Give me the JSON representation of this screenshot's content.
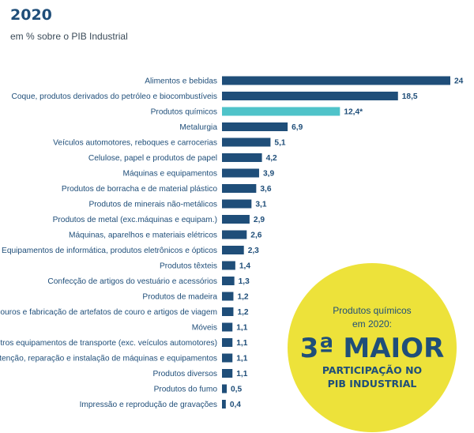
{
  "chart_data": {
    "type": "bar",
    "orientation": "horizontal",
    "title": "2020",
    "subtitle": "em % sobre o PIB Industrial",
    "categories": [
      "Alimentos e bebidas",
      "Coque, produtos derivados do petróleo e biocombustíveis",
      "Produtos químicos",
      "Metalurgia",
      "Veículos automotores, reboques e carrocerias",
      "Celulose, papel e produtos de papel",
      "Máquinas e equipamentos",
      "Produtos de borracha e de material plástico",
      "Produtos de minerais não-metálicos",
      "Produtos de metal (exc.máquinas e equipam.)",
      "Máquinas, aparelhos e materiais elétricos",
      "Equipamentos de informática, produtos eletrônicos e ópticos",
      "Produtos têxteis",
      "Confecção de artigos do vestuário e acessórios",
      "Produtos de madeira",
      "Prep. de couros e fabricação de artefatos de couro e artigos de viagem",
      "Móveis",
      "Outros equipamentos de transporte (exc. veículos automotores)",
      "Manutenção, reparação e instalação de máquinas e equipamentos",
      "Produtos diversos",
      "Produtos do fumo",
      "Impressão e reprodução de gravações"
    ],
    "values": [
      24,
      18.5,
      12.4,
      6.9,
      5.1,
      4.2,
      3.9,
      3.6,
      3.1,
      2.9,
      2.6,
      2.3,
      1.4,
      1.3,
      1.2,
      1.2,
      1.1,
      1.1,
      1.1,
      1.1,
      0.5,
      0.4
    ],
    "value_labels": [
      "24",
      "18,5",
      "12,4*",
      "6,9",
      "5,1",
      "4,2",
      "3,9",
      "3,6",
      "3,1",
      "2,9",
      "2,6",
      "2,3",
      "1,4",
      "1,3",
      "1,2",
      "1,2",
      "1,1",
      "1,1",
      "1,1",
      "1,1",
      "0,5",
      "0,4"
    ],
    "highlight_index": 2,
    "xlim": [
      0,
      24
    ],
    "grid": false,
    "colors": {
      "bar": "#1f4e79",
      "highlight": "#4fc3c9",
      "text": "#1f4e79",
      "callout_fill": "#ede23a"
    }
  },
  "callout": {
    "line1": "Produtos químicos",
    "line2": "em 2020:",
    "big": "3ª MAIOR",
    "line3": "PARTICIPAÇÃO NO",
    "line4": "PIB INDUSTRIAL"
  }
}
